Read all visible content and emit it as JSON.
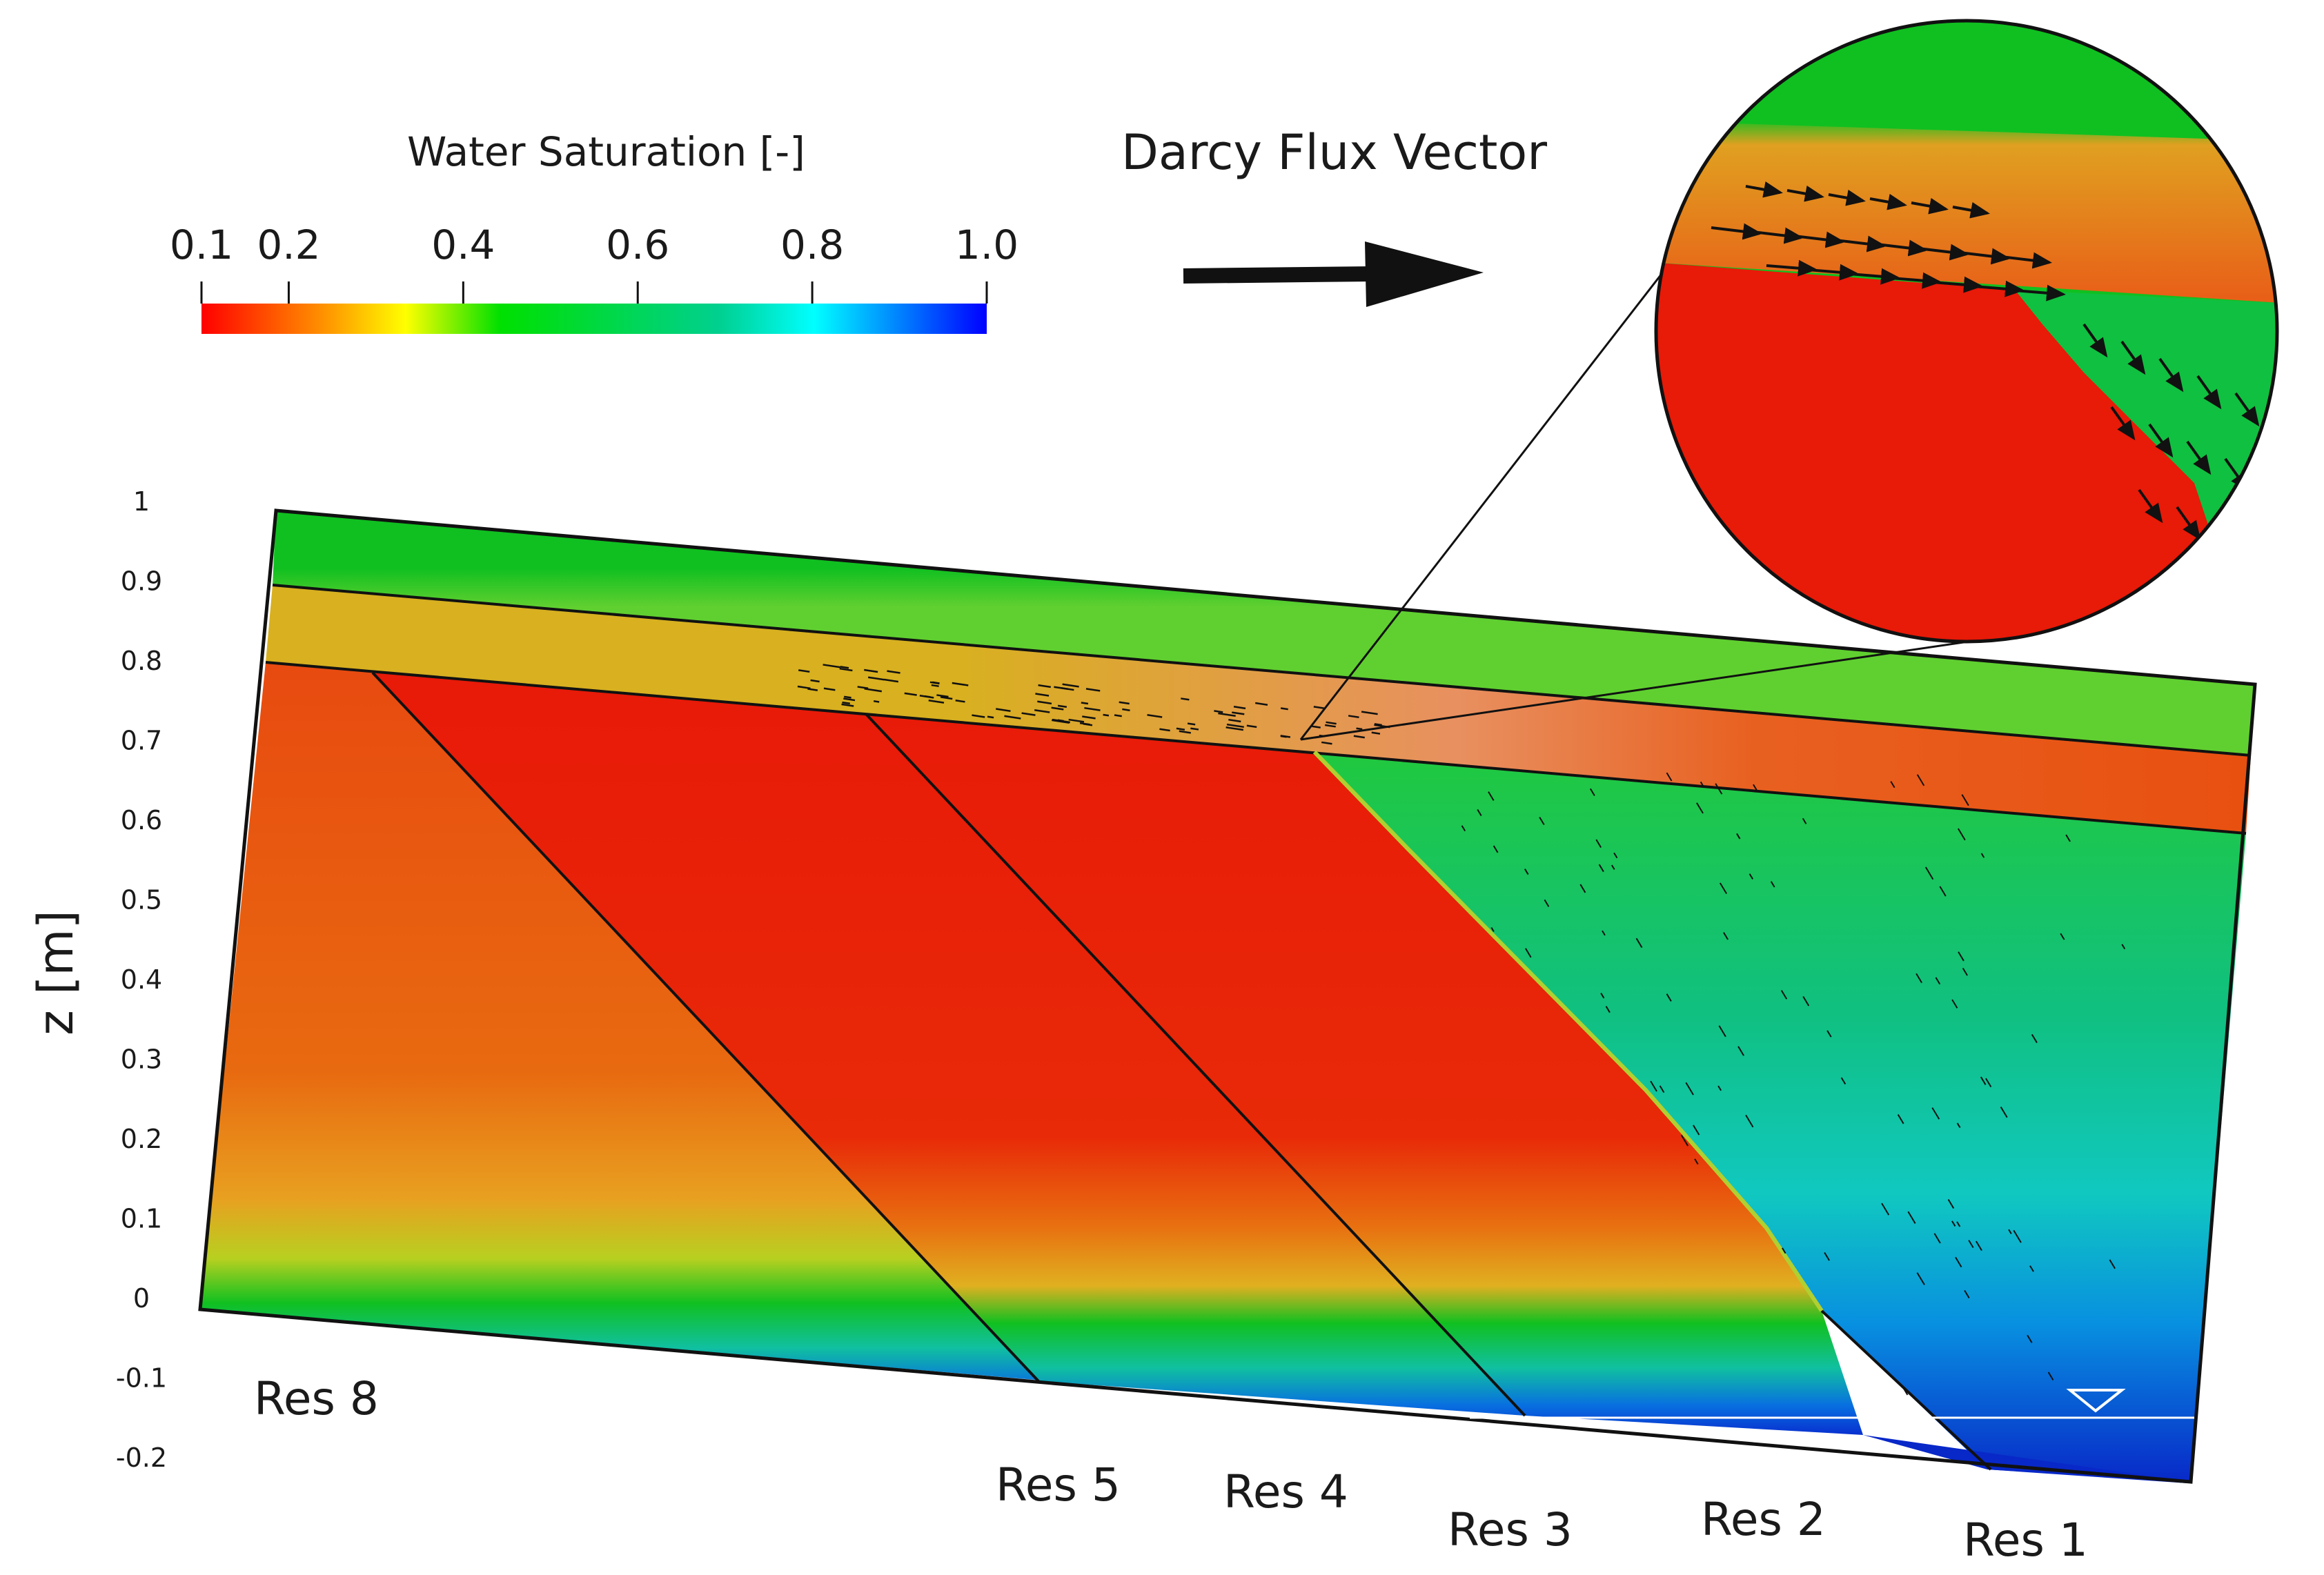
{
  "colorbar": {
    "title": "Water Saturation [-]",
    "ticks": [
      "0.1",
      "0.2",
      "0.4",
      "0.6",
      "0.8",
      "1.0"
    ],
    "tick_values": [
      0.1,
      0.2,
      0.4,
      0.6,
      0.8,
      1.0
    ],
    "colormap": [
      {
        "v": 0.1,
        "color": "#ff0000"
      },
      {
        "v": 0.25,
        "color": "#ffa000"
      },
      {
        "v": 0.33,
        "color": "#ffff00"
      },
      {
        "v": 0.45,
        "color": "#00e000"
      },
      {
        "v": 0.7,
        "color": "#00d090"
      },
      {
        "v": 0.8,
        "color": "#00ffff"
      },
      {
        "v": 0.9,
        "color": "#0080ff"
      },
      {
        "v": 1.0,
        "color": "#0000ff"
      }
    ]
  },
  "flux_legend": {
    "label": "Darcy Flux Vector"
  },
  "axis": {
    "label": "z [m]",
    "ticks": [
      "1",
      "0.9",
      "0.8",
      "0.7",
      "0.6",
      "0.5",
      "0.4",
      "0.3",
      "0.2",
      "0.1",
      "0",
      "-0.1",
      "-0.2"
    ]
  },
  "reservoir_labels": [
    "Res 8",
    "Res 5",
    "Res 4",
    "Res 3",
    "Res 2",
    "Res 1"
  ],
  "colors": {
    "red": "#e8200a",
    "orange_red": "#e85010",
    "green": "#10c020",
    "light_green": "#30d040",
    "teal": "#10c8c0",
    "blue": "#0830d0",
    "amber": "#e0a020",
    "outline": "#111111"
  }
}
